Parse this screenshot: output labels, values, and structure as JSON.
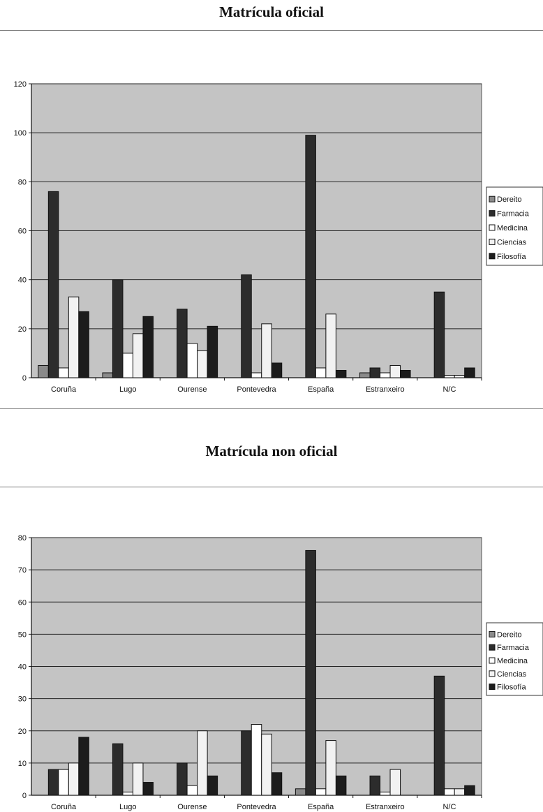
{
  "chart_data": [
    {
      "type": "bar",
      "title": "Matrícula oficial",
      "categories": [
        "Coruña",
        "Lugo",
        "Ourense",
        "Pontevedra",
        "España",
        "Estranxeiro",
        "N/C"
      ],
      "ylim": [
        0,
        120
      ],
      "yticks": [
        0,
        20,
        40,
        60,
        80,
        100,
        120
      ],
      "grid": true,
      "legend_position": "right",
      "series": [
        {
          "name": "Dereito",
          "color": "#8a8a8a",
          "values": [
            5,
            2,
            0,
            0,
            0,
            2,
            0
          ]
        },
        {
          "name": "Farmacia",
          "color": "#2c2c2c",
          "values": [
            76,
            40,
            28,
            42,
            99,
            4,
            35
          ]
        },
        {
          "name": "Medicina",
          "color": "#ffffff",
          "values": [
            4,
            10,
            14,
            2,
            4,
            2,
            1
          ]
        },
        {
          "name": "Ciencias",
          "color": "#f2f2f2",
          "values": [
            33,
            18,
            11,
            22,
            26,
            5,
            1
          ]
        },
        {
          "name": "Filosofía",
          "color": "#1c1c1c",
          "values": [
            27,
            25,
            21,
            6,
            3,
            3,
            4
          ]
        }
      ]
    },
    {
      "type": "bar",
      "title": "Matrícula non oficial",
      "categories": [
        "Coruña",
        "Lugo",
        "Ourense",
        "Pontevedra",
        "España",
        "Estranxeiro",
        "N/C"
      ],
      "ylim": [
        0,
        80
      ],
      "yticks": [
        0,
        10,
        20,
        30,
        40,
        50,
        60,
        70,
        80
      ],
      "grid": true,
      "legend_position": "right",
      "series": [
        {
          "name": "Dereito",
          "color": "#8a8a8a",
          "values": [
            0,
            0,
            0,
            0,
            2,
            0,
            0
          ]
        },
        {
          "name": "Farmacia",
          "color": "#2c2c2c",
          "values": [
            8,
            16,
            10,
            20,
            76,
            6,
            37
          ]
        },
        {
          "name": "Medicina",
          "color": "#ffffff",
          "values": [
            8,
            1,
            3,
            22,
            2,
            1,
            2
          ]
        },
        {
          "name": "Ciencias",
          "color": "#f2f2f2",
          "values": [
            10,
            10,
            20,
            19,
            17,
            8,
            2
          ]
        },
        {
          "name": "Filosofía",
          "color": "#1c1c1c",
          "values": [
            18,
            4,
            6,
            7,
            6,
            0,
            3
          ]
        }
      ]
    }
  ]
}
